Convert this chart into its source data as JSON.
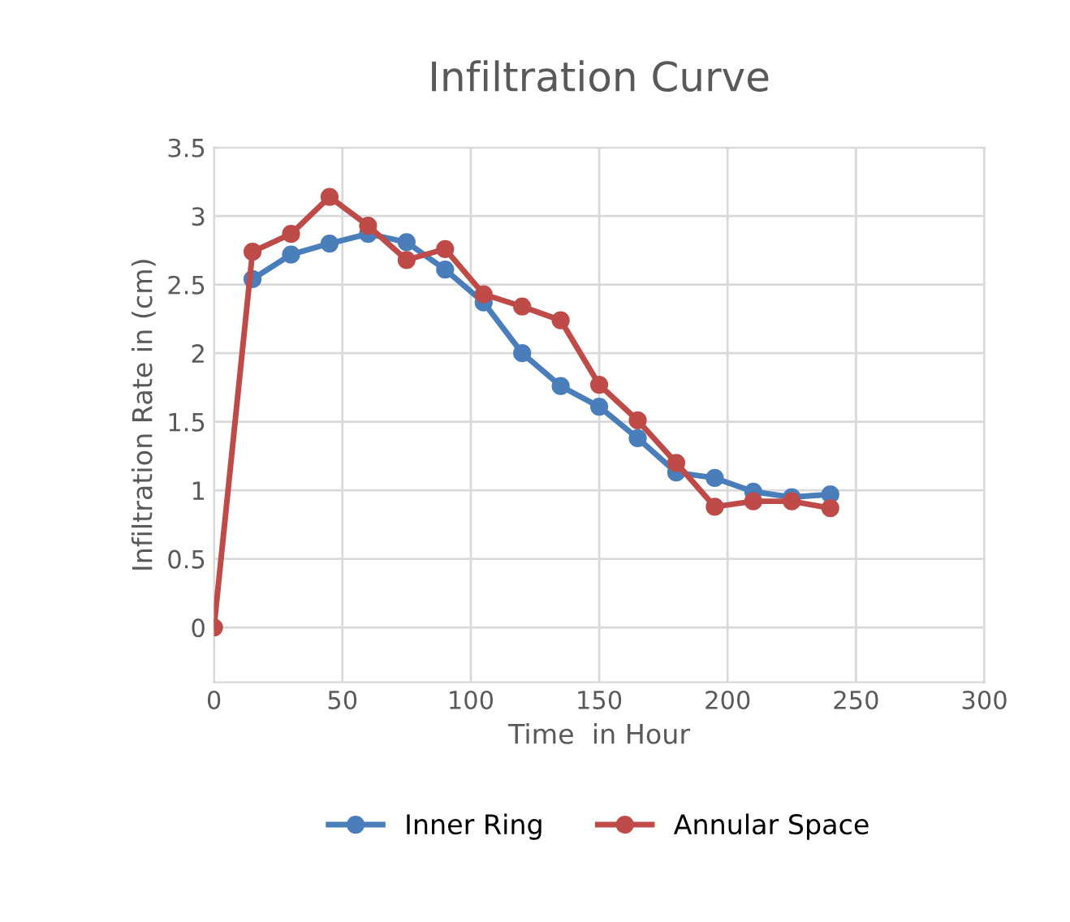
{
  "chart_data": {
    "type": "line",
    "title": "Infiltration Curve",
    "xlabel": "Time  in Hour",
    "ylabel": "Infiltration Rate in (cm)",
    "x": [
      0,
      15,
      30,
      45,
      60,
      75,
      90,
      105,
      120,
      135,
      150,
      165,
      180,
      195,
      210,
      225,
      240
    ],
    "series": [
      {
        "name": "Inner Ring",
        "color": "#4a7ebb",
        "values": [
          null,
          2.54,
          2.72,
          2.8,
          2.87,
          2.81,
          2.61,
          2.37,
          2.0,
          1.76,
          1.61,
          1.38,
          1.13,
          1.09,
          0.99,
          0.95,
          0.97
        ]
      },
      {
        "name": "Annular Space",
        "color": "#be4b48",
        "values": [
          0,
          2.74,
          2.87,
          3.14,
          2.93,
          2.68,
          2.76,
          2.43,
          2.34,
          2.24,
          1.77,
          1.51,
          1.2,
          0.88,
          0.92,
          0.92,
          0.87
        ]
      }
    ],
    "xlim": [
      0,
      300
    ],
    "xticks": [
      0,
      50,
      100,
      150,
      200,
      250,
      300
    ],
    "ylim": [
      -0.4,
      3.5
    ],
    "yticks": [
      0,
      0.5,
      1,
      1.5,
      2,
      2.5,
      3,
      3.5
    ],
    "grid": true,
    "legend": "bottom",
    "marker": "circle",
    "line_style": "solid"
  }
}
